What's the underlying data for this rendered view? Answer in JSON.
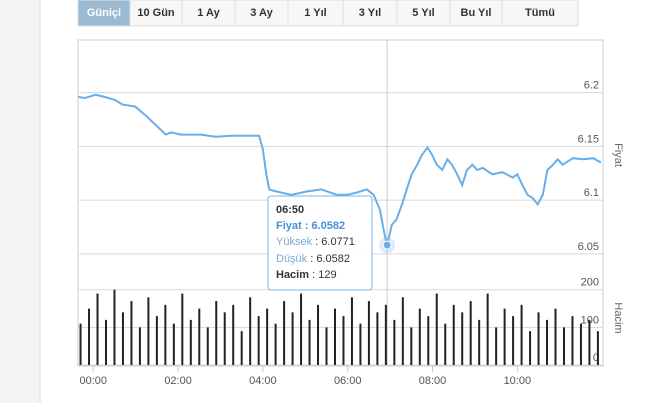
{
  "tabs": [
    {
      "label": "Güniçi",
      "selected": true
    },
    {
      "label": "10 Gün",
      "selected": false
    },
    {
      "label": "1 Ay",
      "selected": false
    },
    {
      "label": "3 Ay",
      "selected": false
    },
    {
      "label": "1 Yıl",
      "selected": false
    },
    {
      "label": "3 Yıl",
      "selected": false
    },
    {
      "label": "5 Yıl",
      "selected": false
    },
    {
      "label": "Bu Yıl",
      "selected": false
    },
    {
      "label": "Tümü",
      "selected": false
    }
  ],
  "tooltip": {
    "time": "06:50",
    "separator": ":",
    "rows": [
      {
        "label": "Fiyat",
        "value": "6.0582"
      },
      {
        "label": "Yüksek",
        "value": "6.0771"
      },
      {
        "label": "Düşük",
        "value": "6.0582"
      },
      {
        "label": "Hacim",
        "value": "129"
      }
    ]
  },
  "chart_data": [
    {
      "type": "line",
      "ylabel": "Fiyat",
      "color": "#6aaee8",
      "grid": true,
      "xlim": [
        -0.36,
        12.02
      ],
      "ylim": [
        6.035,
        6.249
      ],
      "yticks": [
        6.05,
        6.1,
        6.15,
        6.2
      ],
      "x": [
        -0.35,
        -0.19,
        0.05,
        0.28,
        0.52,
        0.69,
        0.99,
        1.23,
        1.47,
        1.71,
        1.83,
        2.07,
        2.53,
        2.89,
        3.24,
        3.6,
        3.91,
        4.0,
        4.08,
        4.15,
        4.32,
        4.67,
        5.03,
        5.38,
        5.74,
        5.98,
        6.21,
        6.45,
        6.61,
        6.76,
        6.87,
        6.93,
        7.04,
        7.15,
        7.28,
        7.39,
        7.51,
        7.64,
        7.75,
        7.88,
        7.99,
        8.1,
        8.23,
        8.35,
        8.46,
        8.58,
        8.7,
        8.81,
        8.94,
        9.05,
        9.18,
        9.41,
        9.65,
        9.89,
        10.0,
        10.12,
        10.24,
        10.36,
        10.48,
        10.6,
        10.71,
        10.84,
        10.95,
        11.07,
        11.31,
        11.55,
        11.79,
        11.97
      ],
      "values": [
        6.196,
        6.195,
        6.198,
        6.196,
        6.193,
        6.189,
        6.187,
        6.179,
        6.17,
        6.161,
        6.163,
        6.161,
        6.161,
        6.159,
        6.16,
        6.16,
        6.16,
        6.147,
        6.124,
        6.11,
        6.108,
        6.105,
        6.108,
        6.11,
        6.105,
        6.105,
        6.107,
        6.11,
        6.105,
        6.091,
        6.068,
        6.0582,
        6.077,
        6.082,
        6.096,
        6.11,
        6.124,
        6.133,
        6.142,
        6.149,
        6.142,
        6.133,
        6.128,
        6.138,
        6.133,
        6.124,
        6.114,
        6.128,
        6.133,
        6.128,
        6.13,
        6.124,
        6.126,
        6.121,
        6.124,
        6.114,
        6.105,
        6.102,
        6.096,
        6.105,
        6.128,
        6.133,
        6.138,
        6.133,
        6.139,
        6.138,
        6.139,
        6.135
      ]
    },
    {
      "type": "bar",
      "ylabel": "Hacim",
      "color": "#222222",
      "grid": true,
      "xlim": [
        -0.36,
        12.02
      ],
      "ylim": [
        0,
        250
      ],
      "yticks": [
        0,
        100,
        200
      ],
      "xticks": [
        {
          "value": 0,
          "label": "00:00"
        },
        {
          "value": 2,
          "label": "02:00"
        },
        {
          "value": 4,
          "label": "04:00"
        },
        {
          "value": 6,
          "label": "06:00"
        },
        {
          "value": 8,
          "label": "08:00"
        },
        {
          "value": 10,
          "label": "10:00"
        }
      ],
      "x": [
        -0.3,
        -0.1,
        0.1,
        0.3,
        0.5,
        0.7,
        0.9,
        1.1,
        1.3,
        1.5,
        1.7,
        1.9,
        2.1,
        2.3,
        2.5,
        2.7,
        2.9,
        3.1,
        3.3,
        3.5,
        3.7,
        3.9,
        4.1,
        4.3,
        4.5,
        4.7,
        4.9,
        5.1,
        5.3,
        5.5,
        5.7,
        5.9,
        6.1,
        6.3,
        6.5,
        6.7,
        6.9,
        7.1,
        7.3,
        7.5,
        7.7,
        7.9,
        8.1,
        8.3,
        8.5,
        8.7,
        8.9,
        9.1,
        9.3,
        9.5,
        9.7,
        9.9,
        10.1,
        10.3,
        10.5,
        10.7,
        10.9,
        11.1,
        11.3,
        11.5,
        11.7,
        11.9
      ],
      "values": [
        110,
        150,
        190,
        120,
        200,
        140,
        170,
        100,
        180,
        130,
        160,
        110,
        190,
        120,
        150,
        100,
        170,
        140,
        160,
        90,
        180,
        130,
        150,
        110,
        170,
        140,
        190,
        120,
        160,
        100,
        150,
        130,
        180,
        110,
        170,
        140,
        160,
        120,
        180,
        100,
        150,
        130,
        190,
        110,
        160,
        140,
        170,
        120,
        190,
        100,
        150,
        130,
        160,
        90,
        140,
        120,
        150,
        100,
        130,
        110,
        120,
        90
      ]
    }
  ]
}
